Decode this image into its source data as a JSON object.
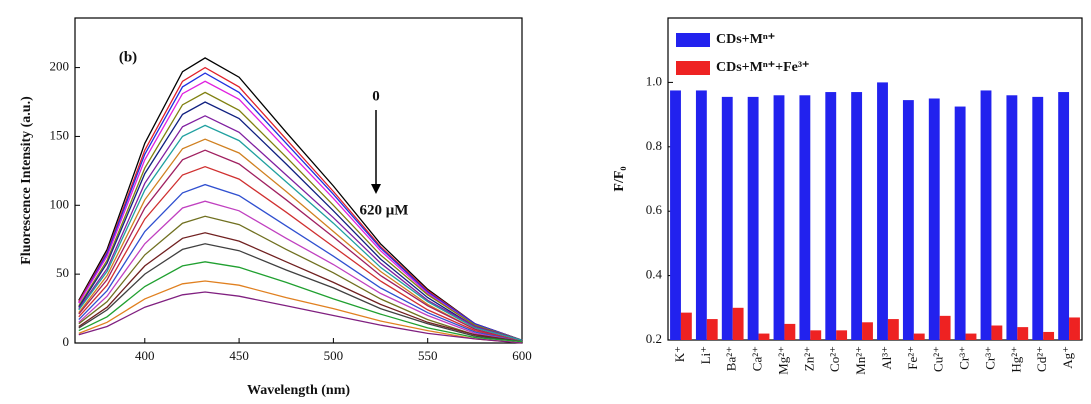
{
  "chart_data": [
    {
      "type": "line",
      "x_label": "Wavelength (nm)",
      "y_label": "Fluorescence Intensity (a.u.)",
      "annotations": [
        "(b)",
        "0",
        "620 μM"
      ],
      "xlim": [
        363,
        600
      ],
      "xticks": [
        400,
        450,
        500,
        550,
        600
      ],
      "ylim": [
        0,
        236
      ],
      "yticks": [
        0,
        50,
        100,
        150,
        200
      ],
      "x": [
        365,
        380,
        400,
        420,
        432,
        450,
        475,
        500,
        525,
        550,
        575,
        600
      ],
      "series": [
        {
          "color": "#000000",
          "values": [
            31,
            68,
            145,
            197,
            207,
            193,
            153,
            114,
            72,
            39,
            14,
            2
          ]
        },
        {
          "color": "#e0202a",
          "values": [
            30,
            66,
            140,
            190,
            200,
            186,
            148,
            110,
            70,
            38,
            14,
            2
          ]
        },
        {
          "color": "#2030e0",
          "values": [
            29,
            65,
            137,
            186,
            196,
            182,
            145,
            108,
            69,
            37,
            14,
            2
          ]
        },
        {
          "color": "#e020e0",
          "values": [
            29,
            63,
            133,
            181,
            190,
            177,
            141,
            105,
            67,
            36,
            13,
            2
          ]
        },
        {
          "color": "#808010",
          "values": [
            27,
            60,
            127,
            173,
            182,
            169,
            135,
            100,
            64,
            35,
            13,
            2
          ]
        },
        {
          "color": "#102080",
          "values": [
            26,
            58,
            123,
            166,
            175,
            163,
            130,
            96,
            61,
            33,
            12,
            2
          ]
        },
        {
          "color": "#8020a0",
          "values": [
            25,
            54,
            116,
            157,
            165,
            153,
            122,
            91,
            58,
            31,
            12,
            2
          ]
        },
        {
          "color": "#20a0a0",
          "values": [
            24,
            52,
            111,
            150,
            158,
            147,
            117,
            87,
            55,
            30,
            11,
            2
          ]
        },
        {
          "color": "#d08020",
          "values": [
            22,
            49,
            104,
            141,
            148,
            138,
            110,
            81,
            52,
            28,
            10,
            1
          ]
        },
        {
          "color": "#a02060",
          "values": [
            21,
            46,
            98,
            133,
            140,
            130,
            104,
            77,
            49,
            27,
            10,
            1
          ]
        },
        {
          "color": "#d03030",
          "values": [
            19,
            42,
            90,
            122,
            128,
            119,
            95,
            70,
            45,
            24,
            9,
            1
          ]
        },
        {
          "color": "#3050d0",
          "values": [
            17,
            38,
            81,
            109,
            115,
            107,
            85,
            63,
            40,
            22,
            8,
            1
          ]
        },
        {
          "color": "#c040c0",
          "values": [
            15,
            34,
            72,
            98,
            103,
            96,
            76,
            57,
            36,
            20,
            7,
            1
          ]
        },
        {
          "color": "#707020",
          "values": [
            14,
            30,
            64,
            87,
            92,
            86,
            68,
            51,
            32,
            17,
            6,
            1
          ]
        },
        {
          "color": "#702020",
          "values": [
            12,
            26,
            56,
            76,
            80,
            74,
            59,
            44,
            28,
            15,
            6,
            1
          ]
        },
        {
          "color": "#404040",
          "values": [
            11,
            24,
            50,
            68,
            72,
            67,
            53,
            40,
            25,
            14,
            5,
            1
          ]
        },
        {
          "color": "#20a030",
          "values": [
            9,
            19,
            41,
            56,
            59,
            55,
            44,
            32,
            21,
            11,
            4,
            1
          ]
        },
        {
          "color": "#e08020",
          "values": [
            7,
            15,
            32,
            43,
            45,
            42,
            33,
            25,
            16,
            9,
            3,
            0
          ]
        },
        {
          "color": "#802080",
          "values": [
            6,
            12,
            26,
            35,
            37,
            34,
            27,
            20,
            13,
            7,
            3,
            0
          ]
        }
      ]
    },
    {
      "type": "bar",
      "y_label": "F/F₀",
      "legend": "upper left",
      "ylim": [
        0.2,
        1.2
      ],
      "yticks": [
        0.2,
        0.4,
        0.6,
        0.8,
        {
          "value": 1,
          "label": "1.0"
        }
      ],
      "categories": [
        "K⁺",
        "Li⁺",
        "Ba²⁺",
        "Ca²⁺",
        "Mg²⁺",
        "Zn²⁺",
        "Co²⁺",
        "Mn²⁺",
        "Al³⁺",
        "Fe²⁺",
        "Cu²⁺",
        "Cr³⁺",
        "Cr³⁺",
        "Hg²⁺",
        "Cd²⁺",
        "Ag⁺"
      ],
      "series": [
        {
          "name": "CDs+Mⁿ⁺",
          "color": "#2222ee",
          "values": [
            0.975,
            0.975,
            0.955,
            0.955,
            0.96,
            0.96,
            0.97,
            0.97,
            1.0,
            0.945,
            0.95,
            0.925,
            0.975,
            0.96,
            0.955,
            0.97
          ]
        },
        {
          "name": "CDs+Mⁿ⁺+Fe³⁺",
          "color": "#ee2222",
          "values": [
            0.285,
            0.265,
            0.3,
            0.22,
            0.25,
            0.23,
            0.23,
            0.255,
            0.265,
            0.22,
            0.275,
            0.22,
            0.245,
            0.24,
            0.225,
            0.27
          ]
        }
      ]
    }
  ]
}
